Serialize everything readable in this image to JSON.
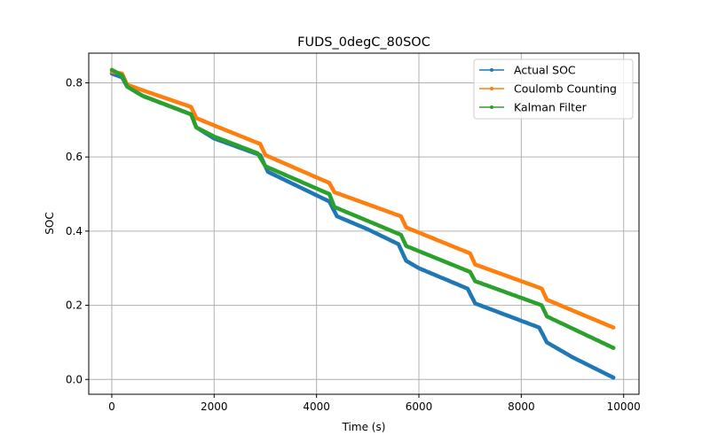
{
  "chart_data": {
    "type": "line",
    "title": "FUDS_0degC_80SOC",
    "xlabel": "Time (s)",
    "ylabel": "SOC",
    "xlim": [
      -450,
      10300
    ],
    "ylim": [
      -0.04,
      0.88
    ],
    "xticks": [
      0,
      2000,
      4000,
      6000,
      8000,
      10000
    ],
    "xtick_labels": [
      "0",
      "2000",
      "4000",
      "6000",
      "8000",
      "10000"
    ],
    "yticks": [
      0.0,
      0.2,
      0.4,
      0.6,
      0.8
    ],
    "ytick_labels": [
      "0.0",
      "0.2",
      "0.4",
      "0.6",
      "0.8"
    ],
    "grid": true,
    "legend_position": "top-right",
    "series": [
      {
        "name": "Actual SOC",
        "color": "#1f77b4",
        "points": [
          [
            0,
            0.825
          ],
          [
            200,
            0.815
          ],
          [
            300,
            0.79
          ],
          [
            600,
            0.765
          ],
          [
            1550,
            0.715
          ],
          [
            1650,
            0.68
          ],
          [
            2000,
            0.65
          ],
          [
            2900,
            0.605
          ],
          [
            3050,
            0.56
          ],
          [
            3500,
            0.53
          ],
          [
            4250,
            0.48
          ],
          [
            4400,
            0.44
          ],
          [
            5000,
            0.405
          ],
          [
            5600,
            0.365
          ],
          [
            5750,
            0.32
          ],
          [
            6000,
            0.3
          ],
          [
            6950,
            0.245
          ],
          [
            7100,
            0.205
          ],
          [
            8350,
            0.14
          ],
          [
            8500,
            0.1
          ],
          [
            9000,
            0.06
          ],
          [
            9800,
            0.005
          ]
        ]
      },
      {
        "name": "Coulomb Counting",
        "color": "#ff7f0e",
        "points": [
          [
            0,
            0.83
          ],
          [
            200,
            0.825
          ],
          [
            300,
            0.795
          ],
          [
            600,
            0.78
          ],
          [
            1550,
            0.735
          ],
          [
            1650,
            0.705
          ],
          [
            2000,
            0.685
          ],
          [
            2900,
            0.635
          ],
          [
            3000,
            0.605
          ],
          [
            4250,
            0.53
          ],
          [
            4350,
            0.505
          ],
          [
            5650,
            0.44
          ],
          [
            5750,
            0.41
          ],
          [
            7000,
            0.34
          ],
          [
            7100,
            0.31
          ],
          [
            8400,
            0.245
          ],
          [
            8500,
            0.215
          ],
          [
            9800,
            0.14
          ]
        ]
      },
      {
        "name": "Kalman Filter",
        "color": "#2ca02c",
        "points": [
          [
            0,
            0.835
          ],
          [
            200,
            0.82
          ],
          [
            300,
            0.79
          ],
          [
            600,
            0.765
          ],
          [
            1550,
            0.715
          ],
          [
            1650,
            0.68
          ],
          [
            2000,
            0.655
          ],
          [
            2850,
            0.61
          ],
          [
            3000,
            0.575
          ],
          [
            4250,
            0.5
          ],
          [
            4350,
            0.465
          ],
          [
            5650,
            0.39
          ],
          [
            5750,
            0.36
          ],
          [
            7000,
            0.29
          ],
          [
            7100,
            0.265
          ],
          [
            8400,
            0.2
          ],
          [
            8500,
            0.17
          ],
          [
            9800,
            0.085
          ]
        ]
      }
    ]
  }
}
